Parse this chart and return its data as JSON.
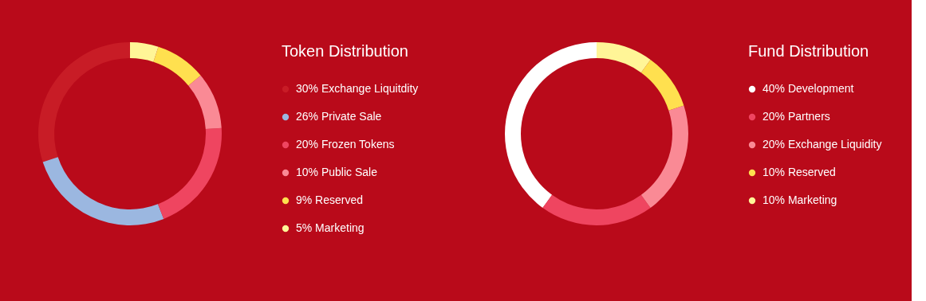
{
  "chart_data": [
    {
      "type": "donut",
      "title": "Token Distribution",
      "legend": "right",
      "categories": [
        "Exchange Liquitdity",
        "Private Sale",
        "Frozen Tokens",
        "Public Sale",
        "Reserved",
        "Marketing"
      ],
      "values": [
        30,
        26,
        20,
        10,
        9,
        5
      ],
      "value_labels": [
        "30%",
        "26%",
        "20%",
        "10%",
        "9%",
        "5%"
      ],
      "colors": [
        "#c81c26",
        "#9bb7e0",
        "#ef4560",
        "#fa8a95",
        "#ffe04f",
        "#fff597"
      ]
    },
    {
      "type": "donut",
      "title": "Fund Distribution",
      "legend": "right",
      "categories": [
        "Development",
        "Partners",
        "Exchange Liquidity",
        "Reserved",
        "Marketing"
      ],
      "values": [
        40,
        20,
        20,
        10,
        10
      ],
      "value_labels": [
        "40%",
        "20%",
        "20%",
        "10%",
        "10%"
      ],
      "colors": [
        "#ffffff",
        "#ef4560",
        "#fa8a95",
        "#ffe04f",
        "#fff597"
      ]
    }
  ]
}
